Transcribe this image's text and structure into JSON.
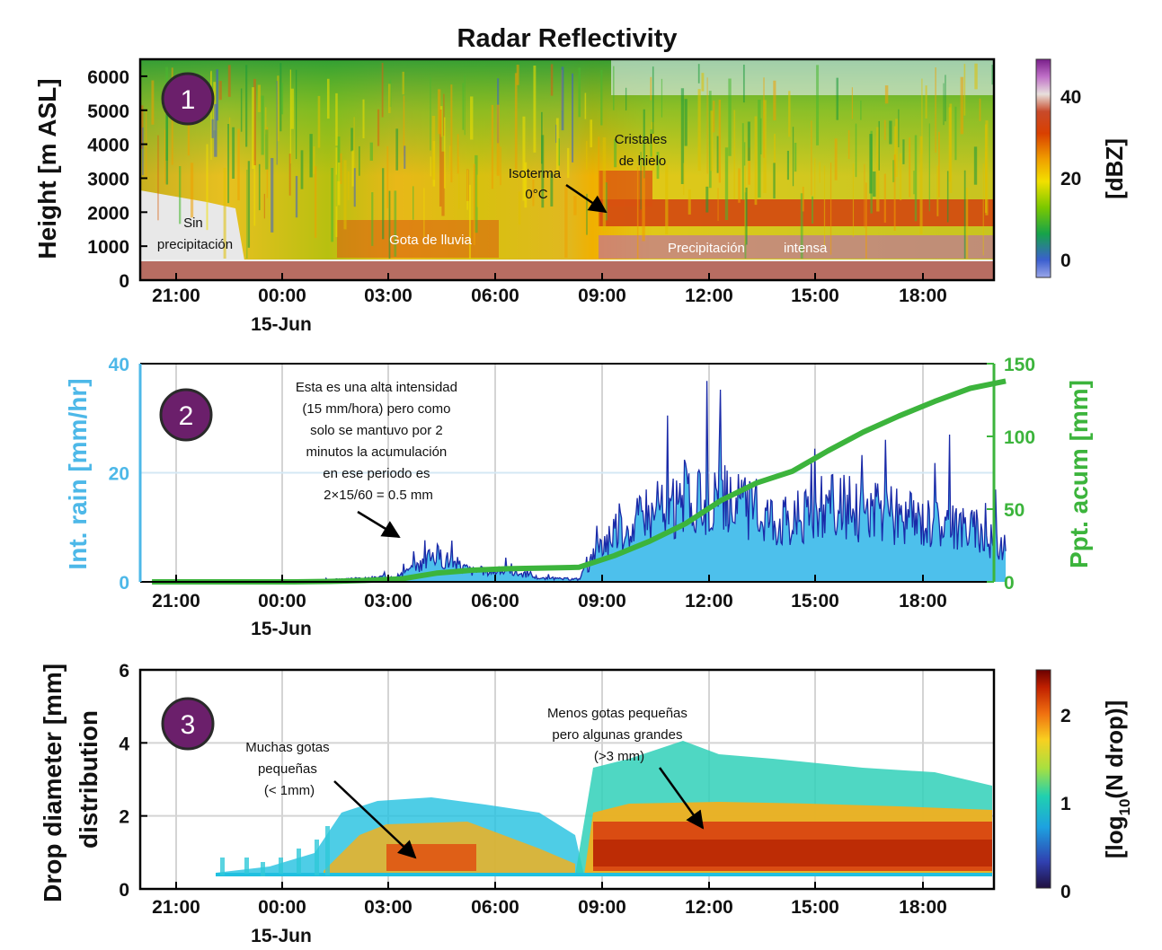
{
  "chart_data": [
    {
      "type": "heatmap",
      "title": "Radar Reflectivity",
      "badge": "1",
      "xlabel": "",
      "ylabel": "Height [m ASL]",
      "x_ticks": [
        "21:00",
        "00:00",
        "03:00",
        "06:00",
        "09:00",
        "12:00",
        "15:00",
        "18:00"
      ],
      "date_label": "15-Jun",
      "y_ticks": [
        "0",
        "1000",
        "2000",
        "3000",
        "4000",
        "5000",
        "6000"
      ],
      "ylim": [
        0,
        6500
      ],
      "colorbar": {
        "label": "[dBZ]",
        "ticks": [
          "0",
          "20",
          "40"
        ],
        "range": [
          -5,
          48
        ]
      },
      "annotations": [
        {
          "text": [
            "Sin",
            "precipitación"
          ]
        },
        {
          "text": [
            "Gota de lluvia"
          ]
        },
        {
          "text": [
            "Isoterma",
            "0°C"
          ]
        },
        {
          "text": [
            "Cristales",
            "de hielo"
          ]
        },
        {
          "text": [
            "Precipitación",
            "intensa"
          ]
        }
      ],
      "layers": [
        {
          "name": "ground",
          "height_m": [
            0,
            500
          ]
        },
        {
          "name": "melting layer",
          "start": "09:00",
          "height_m": [
            1500,
            2300
          ],
          "dbz": 30
        }
      ]
    },
    {
      "type": "area",
      "badge": "2",
      "ylabel": "Int. rain [mm/hr]",
      "y2label": "Ppt. acum [mm]",
      "x_ticks": [
        "21:00",
        "00:00",
        "03:00",
        "06:00",
        "09:00",
        "12:00",
        "15:00",
        "18:00"
      ],
      "date_label": "15-Jun",
      "y_ticks": [
        "0",
        "20",
        "40"
      ],
      "y2_ticks": [
        "0",
        "50",
        "100",
        "150"
      ],
      "ylim": [
        0,
        40
      ],
      "y2lim": [
        0,
        150
      ],
      "x_hours": [
        -4,
        -3,
        -2,
        -1,
        0,
        1,
        2,
        3,
        4,
        5,
        6,
        7,
        8,
        9,
        10,
        11,
        12,
        13,
        14,
        15,
        16,
        17,
        18,
        19,
        20
      ],
      "series": [
        {
          "name": "Int. rain",
          "values": [
            0,
            0,
            0,
            0,
            0,
            0.3,
            0.6,
            1.2,
            5,
            2,
            2,
            0.6,
            0.5,
            10,
            12,
            14,
            15,
            13,
            11,
            14,
            13,
            12,
            11,
            10,
            6
          ]
        },
        {
          "name": "Ppt. acum",
          "values": [
            0,
            0,
            0,
            0,
            0,
            0.3,
            1,
            2,
            6,
            8,
            9,
            9.5,
            10,
            18,
            28,
            40,
            56,
            68,
            76,
            90,
            103,
            114,
            124,
            133,
            138
          ]
        }
      ],
      "annotation": [
        "Esta es una alta intensidad",
        "(15 mm/hora) pero como",
        "solo se mantuvo por 2",
        "minutos la acumulación",
        "en ese periodo es",
        "2×15/60 = 0.5 mm"
      ]
    },
    {
      "type": "heatmap",
      "badge": "3",
      "ylabel": [
        "Drop diameter [mm]",
        "distribution"
      ],
      "x_ticks": [
        "21:00",
        "00:00",
        "03:00",
        "06:00",
        "09:00",
        "12:00",
        "15:00",
        "18:00"
      ],
      "date_label": "15-Jun",
      "y_ticks": [
        "0",
        "2",
        "4",
        "6"
      ],
      "ylim": [
        0,
        6
      ],
      "colorbar": {
        "label": "[log10(N drop)]",
        "label_parts": [
          "[log",
          "10",
          "(N drop)]"
        ],
        "ticks": [
          "0",
          "1",
          "2"
        ],
        "range": [
          0,
          2.5
        ]
      },
      "annotations": [
        {
          "text": [
            "Muchas gotas",
            "pequeñas",
            "(< 1mm)"
          ]
        },
        {
          "text": [
            "Menos gotas pequeñas",
            "pero algunas grandes",
            "(>3 mm)"
          ]
        }
      ]
    }
  ]
}
